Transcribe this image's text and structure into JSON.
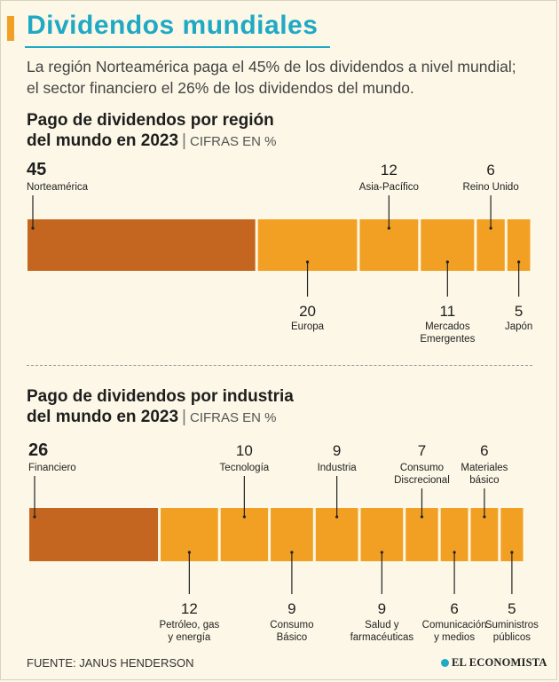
{
  "header": {
    "title": "Dividendos mundiales",
    "subtitle": "La región Norteamérica paga el 45% de los dividendos a nivel mundial; el sector financiero el 26% de los dividendos del mundo."
  },
  "colors": {
    "highlight": "#c4661f",
    "segment": "#f2a024",
    "title": "#20a9c4",
    "background": "#fcf7e6"
  },
  "chart_data": [
    {
      "type": "bar",
      "orientation": "stacked-horizontal",
      "title_line1": "Pago de dividendos por región",
      "title_line2": "del mundo en 2023",
      "units": "CIFRAS EN %",
      "xlim": [
        0,
        100
      ],
      "segments": [
        {
          "label": "Norteamérica",
          "value": 45,
          "label_pos": "top",
          "highlight": true
        },
        {
          "label": "Europa",
          "value": 20,
          "label_pos": "bottom"
        },
        {
          "label": "Asia-Pacífico",
          "value": 12,
          "label_pos": "top"
        },
        {
          "label": "Mercados Emergentes",
          "value": 11,
          "label_pos": "bottom"
        },
        {
          "label": "Reino Unido",
          "value": 6,
          "label_pos": "top"
        },
        {
          "label": "Japón",
          "value": 5,
          "label_pos": "bottom"
        }
      ]
    },
    {
      "type": "bar",
      "orientation": "stacked-horizontal",
      "title_line1": "Pago de dividendos por industria",
      "title_line2": "del mundo en 2023",
      "units": "CIFRAS EN %",
      "xlim": [
        0,
        100
      ],
      "segments": [
        {
          "label": "Financiero",
          "value": 26,
          "label_pos": "top",
          "highlight": true
        },
        {
          "label": "Petróleo, gas y energía",
          "value": 12,
          "label_pos": "bottom"
        },
        {
          "label": "Tecnología",
          "value": 10,
          "label_pos": "top"
        },
        {
          "label": "Consumo Básico",
          "value": 9,
          "label_pos": "bottom"
        },
        {
          "label": "Industria",
          "value": 9,
          "label_pos": "top"
        },
        {
          "label": "Salud y farmacéuticas",
          "value": 9,
          "label_pos": "bottom"
        },
        {
          "label": "Consumo Discrecional",
          "value": 7,
          "label_pos": "top"
        },
        {
          "label": "Comunicación y medios",
          "value": 6,
          "label_pos": "bottom"
        },
        {
          "label": "Materiales básico",
          "value": 6,
          "label_pos": "top"
        },
        {
          "label": "Suministros públicos",
          "value": 5,
          "label_pos": "bottom"
        }
      ]
    }
  ],
  "footer": {
    "source": "FUENTE: JANUS HENDERSON",
    "logo": "EL ECONOMISTA"
  }
}
